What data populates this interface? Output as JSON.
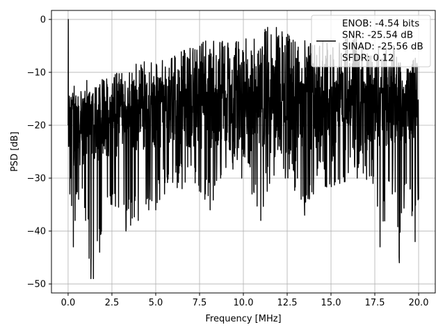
{
  "chart_data": {
    "type": "line",
    "title": "",
    "xlabel": "Frequency [MHz]",
    "ylabel": "PSD [dB]",
    "xlim": [
      -0.95,
      20.95
    ],
    "ylim": [
      -51.7,
      1.7
    ],
    "xticks": [
      0.0,
      2.5,
      5.0,
      7.5,
      10.0,
      12.5,
      15.0,
      17.5,
      20.0
    ],
    "xtick_labels": [
      "0.0",
      "2.5",
      "5.0",
      "7.5",
      "10.0",
      "12.5",
      "15.0",
      "17.5",
      "20.0"
    ],
    "yticks": [
      0,
      -10,
      -20,
      -30,
      -40,
      -50
    ],
    "ytick_labels": [
      "0",
      "−10",
      "−20",
      "−30",
      "−40",
      "−50"
    ],
    "grid": true,
    "legend_placement": "top-right",
    "series": [
      {
        "color": "#000000",
        "description_values": "noise-like PSD spanning 0–20 MHz; rises from about -20 dB near DC to about -10 dB at 10–12 MHz",
        "x": [
          0.0,
          0.02,
          0.1,
          0.3,
          0.4,
          0.6,
          1.0,
          1.3,
          1.45,
          1.8,
          2.5,
          3.3,
          4.0,
          4.6,
          5.0,
          5.5,
          6.5,
          7.8,
          8.1,
          8.7,
          9.0,
          9.9,
          10.5,
          11.0,
          11.5,
          12.4,
          13.3,
          13.5,
          14.0,
          15.5,
          16.5,
          17.4,
          17.8,
          18.5,
          18.9,
          19.3,
          19.8,
          20.0
        ],
        "peaks": [
          0,
          -12,
          -13,
          -13,
          -12,
          -13,
          -11,
          -12,
          -12,
          -11,
          -10,
          -10,
          -8,
          -8,
          -8,
          -7,
          -6,
          -4,
          -3,
          -4,
          -4,
          -4,
          -2,
          -2,
          -1,
          -2,
          -5,
          -4,
          -4,
          -4,
          -3,
          -6,
          -5,
          -4,
          -7,
          -8,
          -7,
          -8
        ],
        "troughs": [
          -20,
          -25,
          -33,
          -43,
          -38,
          -34,
          -38,
          -49,
          -49,
          -44,
          -35,
          -40,
          -38,
          -36,
          -36,
          -33,
          -32,
          -34,
          -36,
          -30,
          -28,
          -30,
          -33,
          -38,
          -31,
          -30,
          -34,
          -37,
          -33,
          -31,
          -30,
          -31,
          -43,
          -33,
          -46,
          -31,
          -42,
          -34
        ]
      }
    ],
    "legend": {
      "lines": [
        "ENOB: -4.54 bits",
        "SNR: -25.54 dB",
        "SINAD: -25.56 dB",
        "SFDR: 0.12"
      ]
    }
  }
}
